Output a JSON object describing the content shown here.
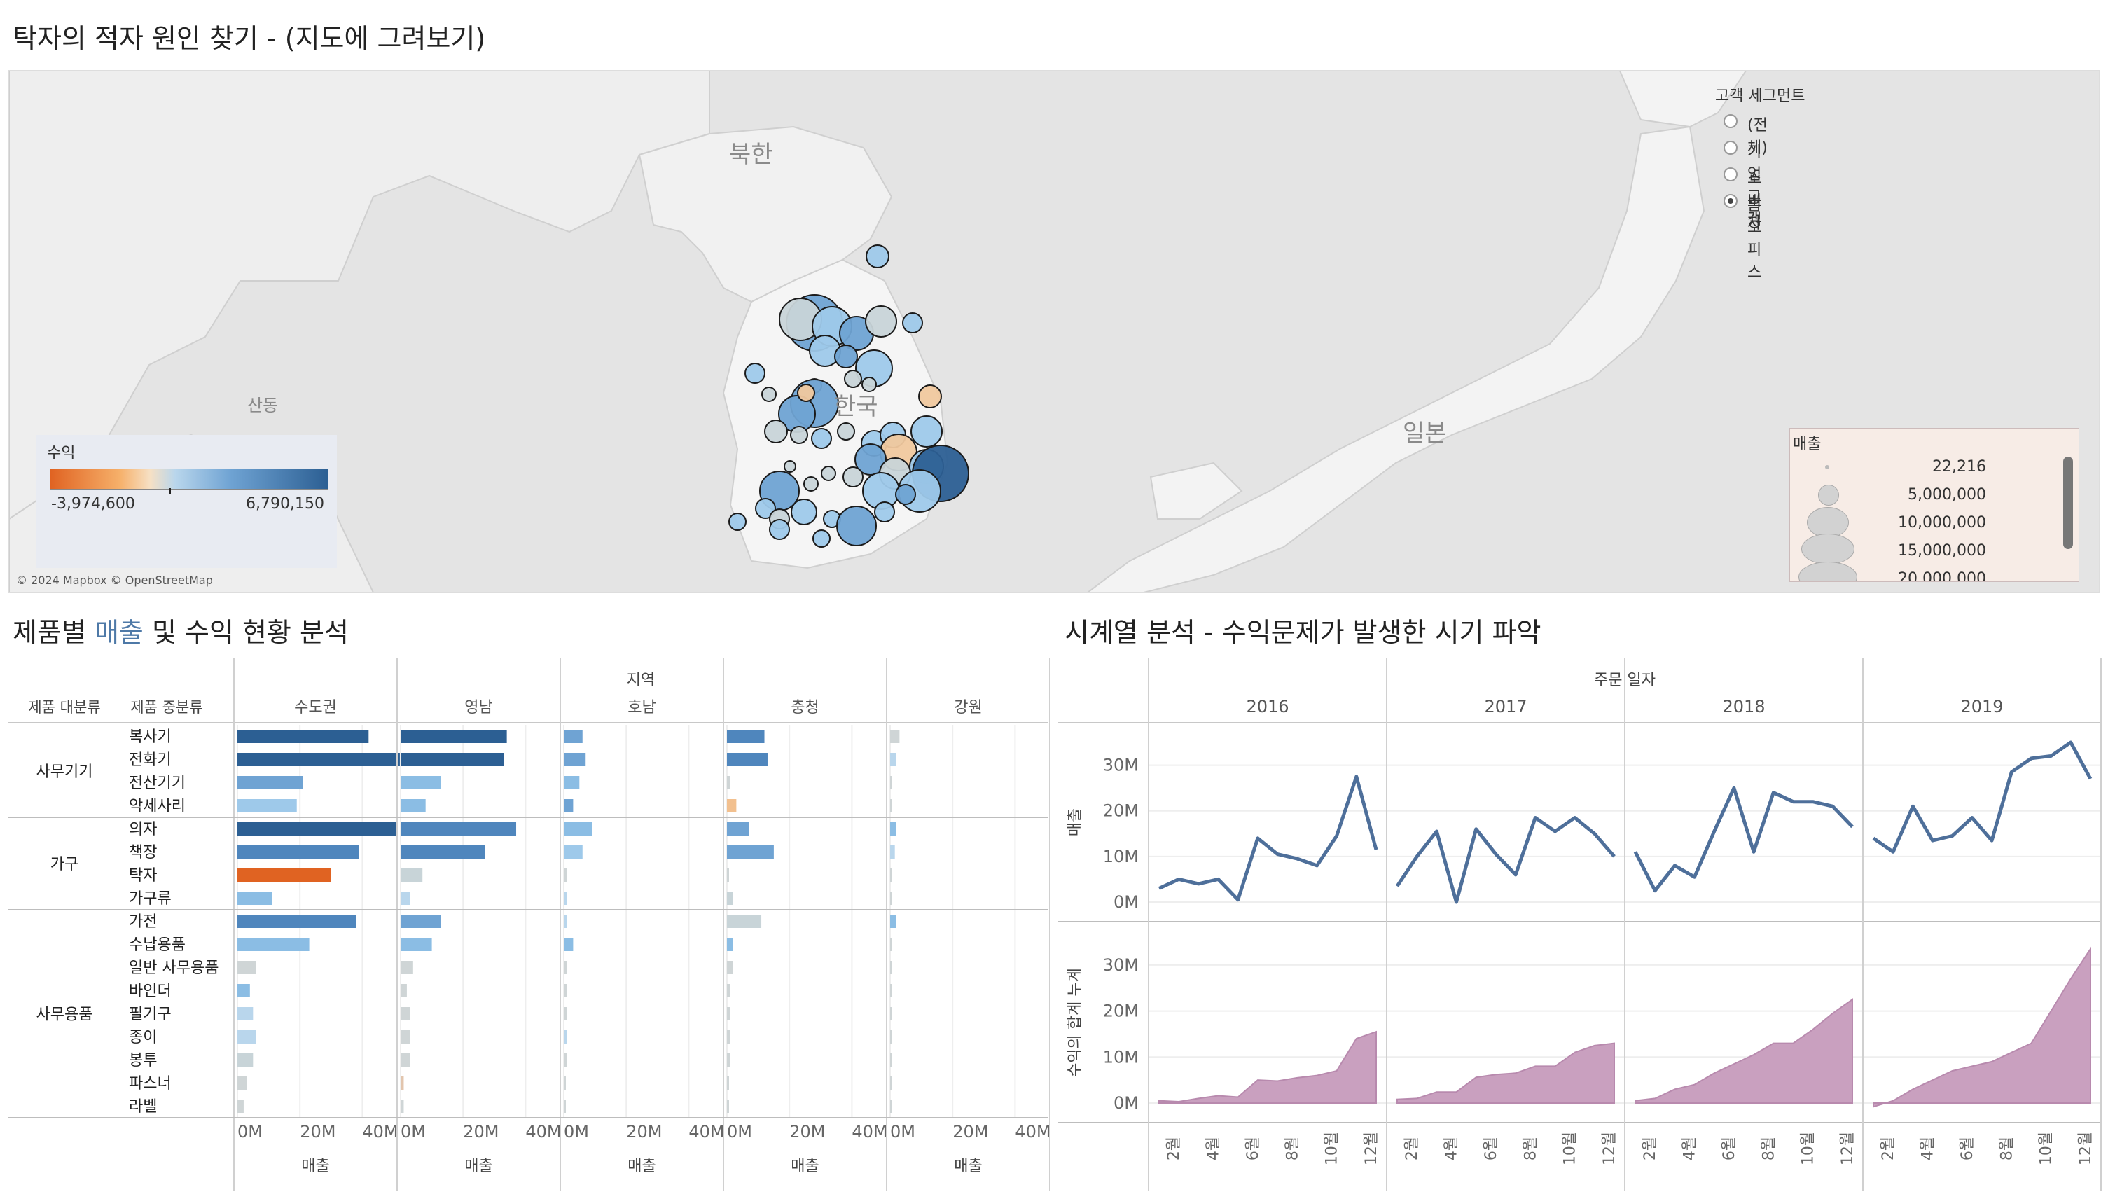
{
  "title": "탁자의 적자 원인 찾기 - (지도에 그려보기)",
  "map": {
    "labels": {
      "north_korea": "북한",
      "south_korea": "한국",
      "japan": "일본",
      "shandong": "산동"
    },
    "attribution": "© 2024 Mapbox © OpenStreetMap"
  },
  "profit_legend": {
    "title": "수익",
    "min": "-3,974,600",
    "max": "6,790,150"
  },
  "segment_filter": {
    "title": "고객 세그먼트",
    "options": [
      "(전체)",
      "기업 고객",
      "소비자",
      "홈 오피스"
    ],
    "selected": "홈 오피스"
  },
  "size_legend": {
    "title": "매출",
    "values": [
      "22,216",
      "5,000,000",
      "10,000,000",
      "15,000,000",
      "20,000,000"
    ]
  },
  "bar_section": {
    "title_prefix": "제품별 ",
    "title_accent": "매출",
    "title_suffix": " 및 수익 현황 분석",
    "region_header": "지역",
    "col_category": "제품 대분류",
    "col_subcategory": "제품 중분류",
    "x_axis_title": "매출",
    "x_ticks": [
      "0M",
      "20M",
      "40M"
    ]
  },
  "chart_data": [
    {
      "type": "bar",
      "title": "제품별 매출 및 수익 현황 분석",
      "xlabel": "매출",
      "facet_label": "지역",
      "regions": [
        "수도권",
        "영남",
        "호남",
        "충청",
        "강원"
      ],
      "groups": [
        {
          "name": "사무기기",
          "items": [
            "복사기",
            "전화기",
            "전산기기",
            "악세사리"
          ]
        },
        {
          "name": "가구",
          "items": [
            "의자",
            "책장",
            "탁자",
            "가구류"
          ]
        },
        {
          "name": "사무용품",
          "items": [
            "가전",
            "수납용품",
            "일반 사무용품",
            "바인더",
            "필기구",
            "종이",
            "봉투",
            "파스너",
            "라벨"
          ]
        }
      ],
      "xlim": [
        0,
        50
      ],
      "values_million": {
        "수도권": [
          42,
          52,
          21,
          19,
          51,
          39,
          30,
          11,
          38,
          23,
          6,
          4,
          5,
          6,
          5,
          3,
          2
        ],
        "영남": [
          34,
          33,
          13,
          8,
          37,
          27,
          7,
          3,
          13,
          10,
          4,
          2,
          3,
          3,
          3,
          1,
          1
        ],
        "호남": [
          6,
          7,
          5,
          3,
          9,
          6,
          1,
          1,
          1,
          3,
          1,
          1,
          1,
          1,
          1,
          0.5,
          0.5
        ],
        "충청": [
          12,
          13,
          1,
          3,
          7,
          15,
          0.5,
          2,
          11,
          2,
          2,
          1,
          1,
          1,
          1,
          0.5,
          0.5
        ],
        "강원": [
          3,
          2,
          0.5,
          0.5,
          2,
          1.5,
          0.5,
          0.5,
          2,
          0.5,
          0.5,
          0.5,
          0.5,
          0.5,
          0.5,
          0.2,
          0.2
        ]
      },
      "colors_hex": {
        "수도권": [
          "#2c5f93",
          "#2c5f93",
          "#6fa3d3",
          "#9ec9ea",
          "#2c5f93",
          "#4f86bd",
          "#e06322",
          "#8bbde4",
          "#4f86bd",
          "#8bbde4",
          "#cfd5d6",
          "#8bbde4",
          "#b9d6ec",
          "#b9d6ec",
          "#c8d4d8",
          "#cfd5d6",
          "#cfd5d6"
        ],
        "영남": [
          "#2c5f93",
          "#2c5f93",
          "#8bbde4",
          "#8bbde4",
          "#4f86bd",
          "#4f86bd",
          "#c8d4d8",
          "#b9d6ec",
          "#6fa3d3",
          "#8bbde4",
          "#cfd5d6",
          "#cfd5d6",
          "#cfd5d6",
          "#cfd5d6",
          "#cfd5d6",
          "#e2c5ad",
          "#cfd5d6"
        ],
        "호남": [
          "#6fa3d3",
          "#6fa3d3",
          "#8bbde4",
          "#6fa3d3",
          "#8bbde4",
          "#9ec9ea",
          "#cfd5d6",
          "#b9d6ec",
          "#b9d6ec",
          "#8bbde4",
          "#cfd5d6",
          "#cfd5d6",
          "#cfd5d6",
          "#b9d6ec",
          "#cfd5d6",
          "#cfd5d6",
          "#cfd5d6"
        ],
        "충청": [
          "#4f86bd",
          "#4f86bd",
          "#cfd5d6",
          "#f2c08f",
          "#6fa3d3",
          "#6fa3d3",
          "#cfd5d6",
          "#c8d4d8",
          "#c8d4d8",
          "#8bbde4",
          "#cfd5d6",
          "#cfd5d6",
          "#cfd5d6",
          "#cfd5d6",
          "#cfd5d6",
          "#cfd5d6",
          "#cfd5d6"
        ],
        "강원": [
          "#cfd5d6",
          "#b9d6ec",
          "#cfd5d6",
          "#cfd5d6",
          "#8bbde4",
          "#b9d6ec",
          "#cfd5d6",
          "#cfd5d6",
          "#8bbde4",
          "#cfd5d6",
          "#cfd5d6",
          "#cfd5d6",
          "#cfd5d6",
          "#cfd5d6",
          "#cfd5d6",
          "#cfd5d6",
          "#cfd5d6"
        ]
      }
    },
    {
      "type": "line",
      "title": "시계열 분석 - 수익문제가 발생한 시기 파악",
      "facet_label": "주문 일자",
      "years": [
        "2016",
        "2017",
        "2018",
        "2019"
      ],
      "x_ticks": [
        "2월",
        "4월",
        "6월",
        "8월",
        "10월",
        "12월"
      ],
      "ylabel": "매출",
      "yticks": [
        "0M",
        "10M",
        "20M",
        "30M"
      ],
      "ylim": [
        0,
        35
      ],
      "series": [
        {
          "values": [
            [
              3,
              5,
              4,
              5,
              0.5,
              14,
              10.5,
              9.5,
              8,
              14.5,
              27.5,
              11.5
            ],
            [
              3.5,
              10,
              15.5,
              0,
              16,
              10.5,
              6,
              18.5,
              15.5,
              18.5,
              15,
              10
            ],
            [
              11,
              2.5,
              8,
              5.5,
              15.5,
              25,
              11,
              24,
              22,
              22,
              21,
              16.5
            ],
            [
              14,
              11,
              21,
              13.5,
              14.5,
              18.5,
              13.5,
              28.5,
              31.5,
              32,
              35,
              27
            ]
          ]
        }
      ],
      "color": "#4e6f9a"
    },
    {
      "type": "area",
      "ylabel": "수익의 합계 누계",
      "yticks": [
        "0M",
        "10M",
        "20M",
        "30M"
      ],
      "ylim": [
        0,
        35
      ],
      "series": [
        {
          "values": [
            [
              0.5,
              0.3,
              1,
              1.6,
              1.3,
              5,
              4.8,
              5.5,
              6,
              7,
              14,
              15.5
            ],
            [
              0.8,
              1,
              2.4,
              2.4,
              5.6,
              6.2,
              6.5,
              8,
              8,
              11,
              12.5,
              13
            ],
            [
              0.5,
              1,
              3,
              4,
              6.5,
              8.5,
              10.5,
              13,
              13,
              16,
              19.5,
              22.5
            ],
            [
              -0.8,
              0.5,
              3,
              5,
              7,
              8,
              9,
              11,
              13,
              20,
              27,
              33.5
            ]
          ]
        }
      ],
      "color": "#c9a0bf"
    }
  ],
  "bubbles_colors": {
    "negative": "#f0c89e",
    "neutral": "#c8d4d8",
    "light": "#9ec9ea",
    "mid": "#6fa3d3",
    "dark": "#2c5f93"
  }
}
